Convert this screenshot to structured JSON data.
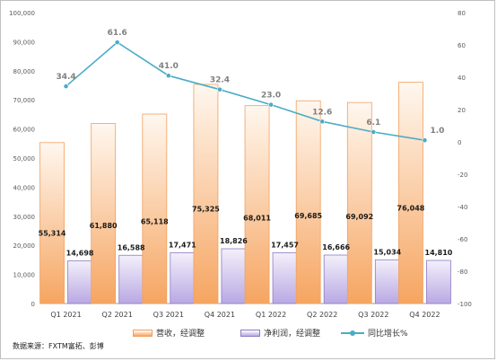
{
  "chart_data": {
    "type": "bar",
    "categories": [
      "Q1 2021",
      "Q2 2021",
      "Q3 2021",
      "Q4 2021",
      "Q1 2022",
      "Q2 2022",
      "Q3 2022",
      "Q4 2022"
    ],
    "series": [
      {
        "name": "营收，经调整",
        "kind": "bar",
        "axis": "left",
        "color": "#f6a561",
        "values": [
          55314,
          61880,
          65118,
          75325,
          68011,
          69685,
          69092,
          76048
        ],
        "labels": [
          "55,314",
          "61,880",
          "65,118",
          "75,325",
          "68,011",
          "69,685",
          "69,092",
          "76,048"
        ]
      },
      {
        "name": "净利润，经调整",
        "kind": "bar",
        "axis": "left",
        "color": "#b9a8e3",
        "values": [
          14698,
          16588,
          17471,
          18826,
          17457,
          16666,
          15034,
          14810
        ],
        "labels": [
          "14,698",
          "16,588",
          "17,471",
          "18,826",
          "17,457",
          "16,666",
          "15,034",
          "14,810"
        ]
      },
      {
        "name": "同比增长%",
        "kind": "line",
        "axis": "right",
        "color": "#4bacc6",
        "values": [
          34.4,
          61.6,
          41.0,
          32.4,
          23.0,
          12.6,
          6.1,
          1.0
        ],
        "labels": [
          "34.4",
          "61.6",
          "41.0",
          "32.4",
          "23.0",
          "12.6",
          "6.1",
          "1.0"
        ]
      }
    ],
    "y_left": {
      "range": [
        0,
        100000
      ],
      "ticks": [
        "0",
        "10,000",
        "20,000",
        "30,000",
        "40,000",
        "50,000",
        "60,000",
        "70,000",
        "80,000",
        "90,000",
        "100,000"
      ]
    },
    "y_right": {
      "range": [
        -100,
        80
      ],
      "ticks": [
        "-100",
        "-80",
        "-60",
        "-40",
        "-20",
        "0",
        "20",
        "40",
        "60",
        "80"
      ]
    },
    "grid": false,
    "legend": "bottom"
  },
  "source": "数据来源：FXTM富拓、彭博"
}
